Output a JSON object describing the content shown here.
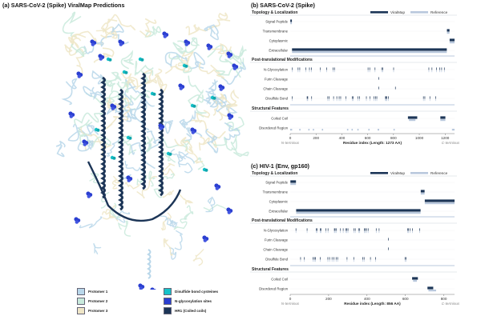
{
  "panel_a": {
    "title": "(a) SARS-CoV-2 (Spike) ViralMap Predictions",
    "legend": [
      {
        "label": "Protomer 1",
        "color": "#b9d7ea"
      },
      {
        "label": "Protomer 2",
        "color": "#c9eadc"
      },
      {
        "label": "Protomer 3",
        "color": "#efe6c7"
      },
      {
        "label": "Disulfide bond cysteines",
        "color": "#16c2c9"
      },
      {
        "label": "N-glycosylation sites",
        "color": "#2b3fd1"
      },
      {
        "label": "HR1 (Coiled coils)",
        "color": "#1c3557"
      }
    ]
  },
  "panel_b": {
    "title": "(b) SARS-CoV-2 (Spike)",
    "legend": {
      "viralmap": "ViralMap",
      "reference": "Reference"
    },
    "sections": [
      {
        "title": "Topology & Localization",
        "rows": [
          "Signal Peptide",
          "Transmembrane",
          "Cytoplasmic",
          "Extracellular"
        ]
      },
      {
        "title": "Post-translational Modifications",
        "rows": [
          "N-Glycosylation",
          "Furin Cleavage",
          "Chain Cleavage",
          "Disulfide Bond"
        ]
      },
      {
        "title": "Structural Features",
        "rows": [
          "Coiled Coil",
          "Disordered Region"
        ]
      }
    ],
    "axis": {
      "label": "Residue index (Length: 1273 AA)",
      "left": "N-terminus",
      "right": "C-terminus",
      "ticks": [
        "0",
        "200",
        "400",
        "600",
        "800",
        "1000",
        "1200"
      ]
    }
  },
  "panel_c": {
    "title": "(c) HIV-1 (Env, gp160)",
    "legend": {
      "viralmap": "ViralMap",
      "reference": "Reference"
    },
    "sections": [
      {
        "title": "Topology & Localization",
        "rows": [
          "Signal Peptide",
          "Transmembrane",
          "Cytoplasmic",
          "Extracellular"
        ]
      },
      {
        "title": "Post-translational Modifications",
        "rows": [
          "N-Glycosylation",
          "Furin Cleavage",
          "Chain Cleavage",
          "Disulfide Bond"
        ]
      },
      {
        "title": "Structural Features",
        "rows": [
          "Coiled Coil",
          "Disordered Region"
        ]
      }
    ],
    "axis": {
      "label": "Residue index (Length: 856 AA)",
      "left": "N-terminus",
      "right": "C-terminus",
      "ticks": [
        "0",
        "200",
        "400",
        "600",
        "800"
      ]
    }
  },
  "chart_data": [
    {
      "type": "track",
      "protein": "SARS-CoV-2 (Spike)",
      "length": 1273,
      "xlim": [
        0,
        1273
      ],
      "viralmap": {
        "Signal Peptide": [
          [
            1,
            13
          ]
        ],
        "Transmembrane": [
          [
            1214,
            1234
          ]
        ],
        "Cytoplasmic": [
          [
            1235,
            1273
          ]
        ],
        "Extracellular": [
          [
            14,
            1213
          ]
        ],
        "N-Glycosylation": [
          17,
          61,
          74,
          122,
          149,
          165,
          234,
          282,
          331,
          343,
          603,
          616,
          657,
          709,
          717,
          801,
          1074,
          1098,
          1134,
          1158,
          1173,
          1194
        ],
        "Furin Cleavage": [
          685
        ],
        "Chain Cleavage": [
          685,
          815
        ],
        "Disulfide Bond": [
          15,
          131,
          136,
          166,
          291,
          301,
          336,
          361,
          379,
          391,
          432,
          480,
          488,
          525,
          538,
          590,
          617,
          649,
          662,
          671,
          738,
          743,
          749,
          760,
          1032,
          1043,
          1082,
          1126
        ],
        "Coiled Coil": [
          [
            912,
            984
          ],
          [
            1163,
            1202
          ]
        ],
        "Disordered Region": []
      },
      "reference": {
        "Signal Peptide": [
          [
            1,
            13
          ]
        ],
        "Transmembrane": [
          [
            1214,
            1234
          ]
        ],
        "Cytoplasmic": [
          [
            1235,
            1273
          ]
        ],
        "Extracellular": [
          [
            14,
            1213
          ]
        ],
        "N-Glycosylation": [
          17,
          61,
          74,
          122,
          149,
          165,
          234,
          282,
          331,
          343,
          603,
          616,
          657,
          709,
          717,
          801,
          1074,
          1098,
          1134,
          1158,
          1173,
          1194
        ],
        "Furin Cleavage": [],
        "Chain Cleavage": [],
        "Disulfide Bond": [
          15,
          131,
          136,
          166,
          291,
          301,
          336,
          361,
          379,
          391,
          432,
          480,
          488,
          525,
          538,
          590,
          617,
          649,
          662,
          671,
          738,
          743,
          749,
          760,
          1032,
          1043,
          1082,
          1126
        ],
        "Coiled Coil": [
          [
            920,
            970
          ],
          [
            1163,
            1202
          ]
        ],
        "Disordered Region": [
          [
            0,
            15
          ],
          [
            70,
            80
          ],
          [
            140,
            150
          ],
          [
            175,
            185
          ],
          [
            245,
            255
          ],
          [
            440,
            450
          ],
          [
            475,
            485
          ],
          [
            520,
            530
          ],
          [
            605,
            615
          ],
          [
            677,
            689
          ],
          [
            800,
            810
          ],
          [
            1253,
            1273
          ]
        ]
      }
    },
    {
      "type": "track",
      "protein": "HIV-1 (Env, gp160)",
      "length": 856,
      "xlim": [
        0,
        856
      ],
      "viralmap": {
        "Signal Peptide": [
          [
            1,
            30
          ]
        ],
        "Transmembrane": [
          [
            680,
            700
          ]
        ],
        "Cytoplasmic": [
          [
            701,
            856
          ]
        ],
        "Extracellular": [
          [
            31,
            679
          ]
        ],
        "N-Glycosylation": [
          30,
          88,
          136,
          141,
          156,
          160,
          186,
          197,
          230,
          234,
          241,
          262,
          276,
          289,
          295,
          301,
          332,
          339,
          356,
          362,
          386,
          392,
          397,
          406,
          448,
          463,
          611,
          616,
          625,
          637,
          674
        ],
        "Furin Cleavage": [
          511
        ],
        "Chain Cleavage": [
          511
        ],
        "Disulfide Bond": [
          54,
          74,
          119,
          126,
          131,
          157,
          196,
          205,
          218,
          228,
          239,
          247,
          296,
          331,
          378,
          385,
          418,
          445,
          598,
          604
        ],
        "Coiled Coil": [
          [
            635,
            665
          ]
        ],
        "Disordered Region": [
          [
            715,
            745
          ]
        ]
      },
      "reference": {
        "Signal Peptide": [
          [
            1,
            30
          ]
        ],
        "Transmembrane": [
          [
            680,
            700
          ]
        ],
        "Cytoplasmic": [
          [
            701,
            856
          ]
        ],
        "Extracellular": [
          [
            31,
            679
          ]
        ],
        "N-Glycosylation": [
          30,
          88,
          136,
          141,
          156,
          160,
          186,
          197,
          230,
          234,
          241,
          262,
          276,
          289,
          295,
          301,
          332,
          339,
          356,
          362,
          386,
          392,
          397,
          406,
          448,
          463,
          611,
          616,
          625,
          637,
          674
        ],
        "Furin Cleavage": [],
        "Chain Cleavage": [],
        "Disulfide Bond": [
          54,
          74,
          119,
          126,
          131,
          157,
          196,
          205,
          218,
          228,
          239,
          247,
          296,
          331,
          378,
          385,
          418,
          445,
          598,
          604
        ],
        "Coiled Coil": [
          [
            640,
            660
          ]
        ],
        "Disordered Region": [
          [
            720,
            760
          ]
        ]
      }
    }
  ]
}
